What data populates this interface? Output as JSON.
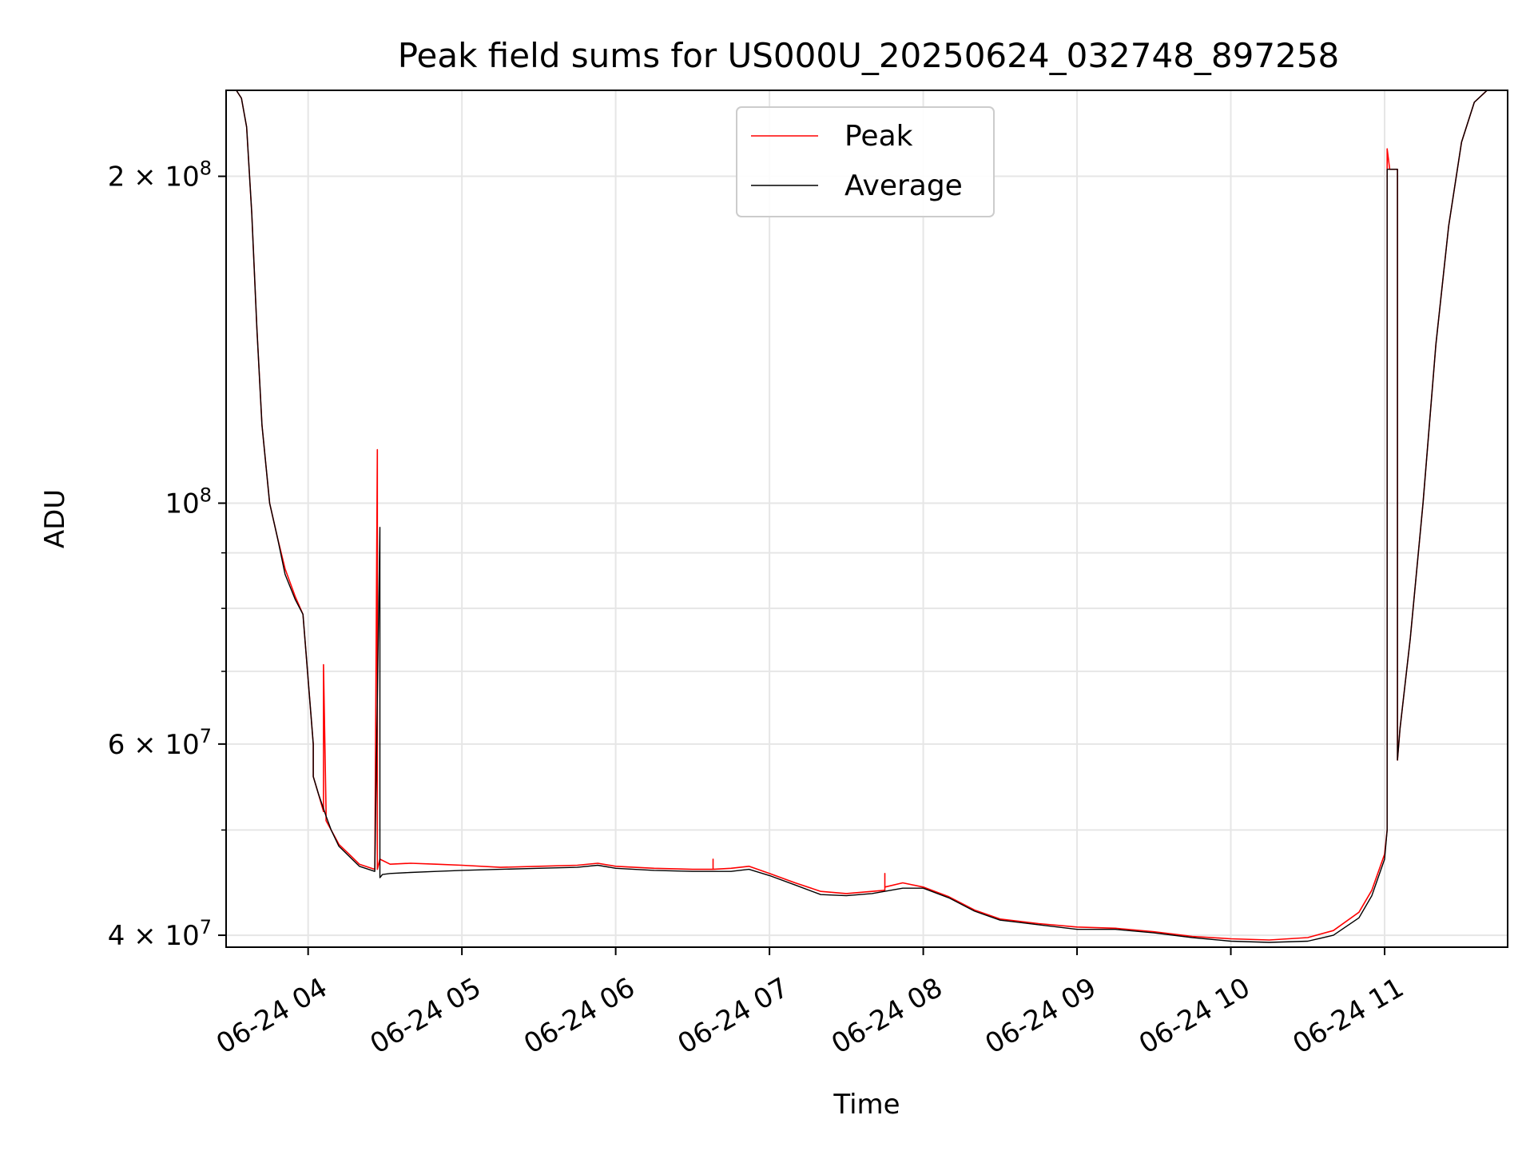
{
  "chart_data": {
    "type": "line",
    "title": "Peak field sums for US000U_20250624_032748_897258",
    "xlabel": "Time",
    "ylabel": "ADU",
    "yscale": "log",
    "ylim": [
      39000000,
      240000000
    ],
    "xlim": [
      "2025-06-24 03:28",
      "2025-06-24 11:48"
    ],
    "grid": true,
    "legend_position": "upper center",
    "x_ticks": [
      {
        "value": "2025-06-24 04:00",
        "label": "06-24 04"
      },
      {
        "value": "2025-06-24 05:00",
        "label": "06-24 05"
      },
      {
        "value": "2025-06-24 06:00",
        "label": "06-24 06"
      },
      {
        "value": "2025-06-24 07:00",
        "label": "06-24 07"
      },
      {
        "value": "2025-06-24 08:00",
        "label": "06-24 08"
      },
      {
        "value": "2025-06-24 09:00",
        "label": "06-24 09"
      },
      {
        "value": "2025-06-24 10:00",
        "label": "06-24 10"
      },
      {
        "value": "2025-06-24 11:00",
        "label": "06-24 11"
      }
    ],
    "y_ticks": [
      {
        "value": 40000000,
        "mantissa": "4",
        "exp": "7",
        "has_mantissa": true
      },
      {
        "value": 60000000,
        "mantissa": "6",
        "exp": "7",
        "has_mantissa": true
      },
      {
        "value": 100000000,
        "mantissa": "",
        "exp": "8",
        "has_mantissa": false
      },
      {
        "value": 200000000,
        "mantissa": "2",
        "exp": "8",
        "has_mantissa": true
      }
    ],
    "y_minor_ticks": [
      50000000,
      70000000,
      80000000,
      90000000,
      300000000
    ],
    "series": [
      {
        "name": "Peak",
        "color": "#ff0000",
        "x": [
          "2025-06-24 03:32",
          "2025-06-24 03:34",
          "2025-06-24 03:36",
          "2025-06-24 03:38",
          "2025-06-24 03:40",
          "2025-06-24 03:42",
          "2025-06-24 03:45",
          "2025-06-24 03:48",
          "2025-06-24 03:51",
          "2025-06-24 03:55",
          "2025-06-24 03:58",
          "2025-06-24 04:02",
          "2025-06-24 04:02",
          "2025-06-24 04:04",
          "2025-06-24 04:06",
          "2025-06-24 04:06",
          "2025-06-24 04:07",
          "2025-06-24 04:07",
          "2025-06-24 04:09",
          "2025-06-24 04:12",
          "2025-06-24 04:16",
          "2025-06-24 04:20",
          "2025-06-24 04:26",
          "2025-06-24 04:27",
          "2025-06-24 04:27",
          "2025-06-24 04:28",
          "2025-06-24 04:28",
          "2025-06-24 04:32",
          "2025-06-24 04:40",
          "2025-06-24 04:50",
          "2025-06-24 05:00",
          "2025-06-24 05:15",
          "2025-06-24 05:30",
          "2025-06-24 05:45",
          "2025-06-24 05:53",
          "2025-06-24 06:00",
          "2025-06-24 06:15",
          "2025-06-24 06:30",
          "2025-06-24 06:38",
          "2025-06-24 06:38",
          "2025-06-24 06:38",
          "2025-06-24 06:45",
          "2025-06-24 06:52",
          "2025-06-24 07:00",
          "2025-06-24 07:10",
          "2025-06-24 07:20",
          "2025-06-24 07:30",
          "2025-06-24 07:40",
          "2025-06-24 07:45",
          "2025-06-24 07:45",
          "2025-06-24 07:45",
          "2025-06-24 07:52",
          "2025-06-24 08:00",
          "2025-06-24 08:10",
          "2025-06-24 08:20",
          "2025-06-24 08:30",
          "2025-06-24 08:45",
          "2025-06-24 09:00",
          "2025-06-24 09:15",
          "2025-06-24 09:30",
          "2025-06-24 09:45",
          "2025-06-24 10:00",
          "2025-06-24 10:15",
          "2025-06-24 10:30",
          "2025-06-24 10:40",
          "2025-06-24 10:50",
          "2025-06-24 10:55",
          "2025-06-24 11:00",
          "2025-06-24 11:01",
          "2025-06-24 11:01",
          "2025-06-24 11:02",
          "2025-06-24 11:04",
          "2025-06-24 11:05",
          "2025-06-24 11:05",
          "2025-06-24 11:06",
          "2025-06-24 11:10",
          "2025-06-24 11:15",
          "2025-06-24 11:20",
          "2025-06-24 11:25",
          "2025-06-24 11:30",
          "2025-06-24 11:35",
          "2025-06-24 11:40",
          "2025-06-24 11:45"
        ],
        "y": [
          240000000,
          236000000,
          222000000,
          185000000,
          145000000,
          118000000,
          100000000,
          93000000,
          87000000,
          82000000,
          79000000,
          60000000,
          56000000,
          54000000,
          52000000,
          71000000,
          52000000,
          51000000,
          50000000,
          48500000,
          47500000,
          46500000,
          46000000,
          112000000,
          46000000,
          47000000,
          47000000,
          46500000,
          46600000,
          46500000,
          46400000,
          46200000,
          46300000,
          46400000,
          46600000,
          46300000,
          46100000,
          46000000,
          46000000,
          47000000,
          46000000,
          46100000,
          46300000,
          45600000,
          44700000,
          43900000,
          43700000,
          43900000,
          44000000,
          45600000,
          44300000,
          44700000,
          44300000,
          43400000,
          42200000,
          41400000,
          41000000,
          40700000,
          40600000,
          40300000,
          39900000,
          39700000,
          39600000,
          39800000,
          40400000,
          42000000,
          44000000,
          47500000,
          50000000,
          212000000,
          203000000,
          203000000,
          203000000,
          58000000,
          62000000,
          75000000,
          100000000,
          140000000,
          180000000,
          215000000,
          234000000,
          240000000,
          240000000
        ]
      },
      {
        "name": "Average",
        "color": "#000000",
        "x": [
          "2025-06-24 03:32",
          "2025-06-24 03:34",
          "2025-06-24 03:36",
          "2025-06-24 03:38",
          "2025-06-24 03:40",
          "2025-06-24 03:42",
          "2025-06-24 03:45",
          "2025-06-24 03:48",
          "2025-06-24 03:51",
          "2025-06-24 03:55",
          "2025-06-24 03:58",
          "2025-06-24 04:02",
          "2025-06-24 04:02",
          "2025-06-24 04:04",
          "2025-06-24 04:07",
          "2025-06-24 04:09",
          "2025-06-24 04:12",
          "2025-06-24 04:16",
          "2025-06-24 04:20",
          "2025-06-24 04:26",
          "2025-06-24 04:28",
          "2025-06-24 04:28",
          "2025-06-24 04:29",
          "2025-06-24 04:32",
          "2025-06-24 04:40",
          "2025-06-24 04:50",
          "2025-06-24 05:00",
          "2025-06-24 05:15",
          "2025-06-24 05:30",
          "2025-06-24 05:45",
          "2025-06-24 05:53",
          "2025-06-24 06:00",
          "2025-06-24 06:15",
          "2025-06-24 06:30",
          "2025-06-24 06:45",
          "2025-06-24 06:52",
          "2025-06-24 07:00",
          "2025-06-24 07:10",
          "2025-06-24 07:20",
          "2025-06-24 07:30",
          "2025-06-24 07:40",
          "2025-06-24 07:52",
          "2025-06-24 08:00",
          "2025-06-24 08:10",
          "2025-06-24 08:20",
          "2025-06-24 08:30",
          "2025-06-24 08:45",
          "2025-06-24 09:00",
          "2025-06-24 09:15",
          "2025-06-24 09:30",
          "2025-06-24 09:45",
          "2025-06-24 10:00",
          "2025-06-24 10:15",
          "2025-06-24 10:30",
          "2025-06-24 10:40",
          "2025-06-24 10:50",
          "2025-06-24 10:55",
          "2025-06-24 11:00",
          "2025-06-24 11:01",
          "2025-06-24 11:01",
          "2025-06-24 11:04",
          "2025-06-24 11:05",
          "2025-06-24 11:05",
          "2025-06-24 11:06",
          "2025-06-24 11:10",
          "2025-06-24 11:15",
          "2025-06-24 11:20",
          "2025-06-24 11:25",
          "2025-06-24 11:30",
          "2025-06-24 11:35",
          "2025-06-24 11:40",
          "2025-06-24 11:45"
        ],
        "y": [
          240000000,
          236000000,
          222000000,
          185000000,
          145000000,
          118000000,
          100000000,
          93000000,
          86000000,
          81500000,
          79000000,
          60000000,
          56000000,
          54000000,
          51500000,
          50000000,
          48300000,
          47300000,
          46300000,
          45800000,
          95000000,
          45200000,
          45500000,
          45600000,
          45700000,
          45800000,
          45900000,
          46000000,
          46100000,
          46200000,
          46400000,
          46100000,
          45900000,
          45800000,
          45800000,
          46000000,
          45400000,
          44500000,
          43600000,
          43500000,
          43700000,
          44200000,
          44200000,
          43300000,
          42100000,
          41300000,
          40900000,
          40500000,
          40500000,
          40200000,
          39800000,
          39500000,
          39400000,
          39500000,
          40000000,
          41500000,
          43500000,
          47000000,
          50000000,
          203000000,
          203000000,
          203000000,
          58000000,
          62000000,
          75000000,
          100000000,
          140000000,
          180000000,
          215000000,
          234000000,
          240000000,
          240000000
        ]
      }
    ]
  }
}
